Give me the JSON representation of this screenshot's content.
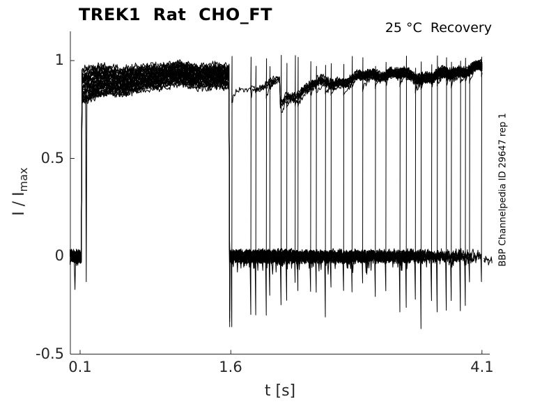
{
  "chart_data": {
    "type": "line",
    "title": "TREK1  Rat  CHO_FT",
    "annotation": "25 °C  Recovery",
    "side_label": "BBP Channelpedia ID 29647 rep 1",
    "xlabel": "t [s]",
    "ylabel_main": "I / I",
    "ylabel_sub": "max",
    "xticks": [
      0.1,
      1.6,
      4.1
    ],
    "yticks": [
      -0.5,
      0,
      0.5,
      1
    ],
    "xlim": [
      0,
      4.2
    ],
    "ylim": [
      -0.5,
      1.15
    ],
    "grid": false,
    "legend": null,
    "axis_color": "#262626",
    "trace_color": "#000000",
    "trace": {
      "description": "Normalized TREK1 current, overlaid sweeps: conditioning pulse then recovery test pulses at increasing intervals",
      "pre_baseline": {
        "t_start": 0.0,
        "t_end": 0.113,
        "level": 0,
        "noise": 0.025
      },
      "pre_dips": [
        {
          "t": 0.05,
          "v": -0.17
        },
        {
          "t": 0.16,
          "v": -0.13
        }
      ],
      "conditioning_pulse": {
        "t_start": 0.115,
        "t_end": 1.588,
        "bottom_start": 0.78,
        "bottom_end": 0.885,
        "top_start": 0.95,
        "top_end": 0.975
      },
      "offset_undershoot_range": [
        -0.37,
        -0.08
      ],
      "recovery_level_start": 0.87,
      "recovery_level_end": 0.95,
      "recovery_noise": 0.015,
      "sag": {
        "t_start": 2.09,
        "t_end": 2.43,
        "depth": 0.125
      },
      "zero_level": 0,
      "zero_noise": 0.026,
      "test_onsets": [
        1.607,
        1.795,
        1.844,
        1.948,
        1.983,
        2.094,
        2.15,
        2.234,
        2.261,
        2.387,
        2.443,
        2.54,
        2.596,
        2.721,
        2.805,
        2.909,
        3.034,
        3.139,
        3.278,
        3.341,
        3.431,
        3.487,
        3.592,
        3.654,
        3.745,
        3.794,
        3.884,
        3.933,
        3.975,
        4.093
      ],
      "onset_spike_top": 1.0,
      "deep_transients": [
        {
          "t": 1.607,
          "v": -0.36
        },
        {
          "t": 1.844,
          "v": -0.3
        },
        {
          "t": 3.487,
          "v": -0.37
        }
      ],
      "t_end_data": 4.103,
      "tail_zero": {
        "t_start": 4.115,
        "t_end": 4.205,
        "level": -0.02
      }
    }
  }
}
